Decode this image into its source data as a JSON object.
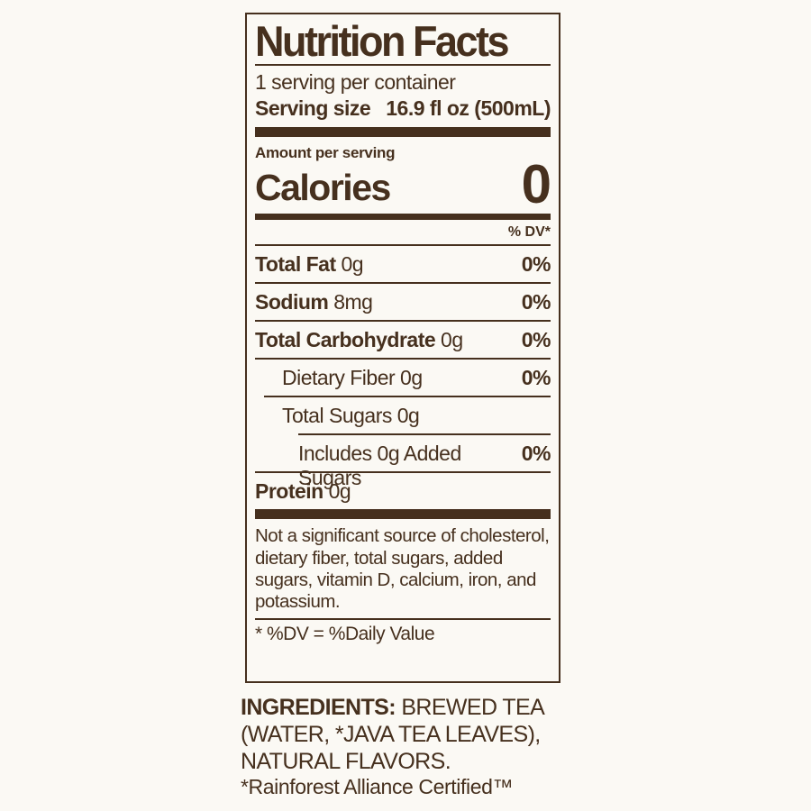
{
  "colors": {
    "label_brown": "#46301e",
    "background": "#fbf9f4"
  },
  "nutrition_label": {
    "title": "Nutrition Facts",
    "servings_per_container": "1 serving per container",
    "serving_size": {
      "label": "Serving size",
      "value": "16.9 fl oz (500mL)"
    },
    "amount_per_serving": "Amount per serving",
    "calories": {
      "label": "Calories",
      "value": "0"
    },
    "dv_header": "% DV*",
    "rows": [
      {
        "name": "Total Fat",
        "amount": "0g",
        "dv": "0%",
        "bold": true,
        "indent": 0,
        "sep": 0
      },
      {
        "name": "Sodium",
        "amount": "8mg",
        "dv": "0%",
        "bold": true,
        "indent": 0,
        "sep": 0
      },
      {
        "name": "Total Carbohydrate",
        "amount": "0g",
        "dv": "0%",
        "bold": true,
        "indent": 0,
        "sep": 0
      },
      {
        "name": "Dietary Fiber",
        "amount": "0g",
        "dv": "0%",
        "bold": false,
        "indent": 1,
        "sep": 0
      },
      {
        "name": "Total Sugars",
        "amount": "0g",
        "dv": "",
        "bold": false,
        "indent": 1,
        "sep": 1
      },
      {
        "name": "Includes 0g Added Sugars",
        "amount": "",
        "dv": "0%",
        "bold": false,
        "indent": 2,
        "sep": 2
      },
      {
        "name": "Protein",
        "amount": "0g",
        "dv": "",
        "bold": true,
        "indent": 0,
        "sep": 0
      }
    ],
    "footnote": "Not a significant source of cholesterol, dietary fiber, total sugars, added sugars, vitamin D, calcium, iron, and potassium.",
    "dv_definition": "* %DV = %Daily Value"
  },
  "ingredients": {
    "label": "INGREDIENTS:",
    "line1_rest": " BREWED TEA",
    "line2": "(WATER, *JAVA TEA LEAVES),",
    "line3": "NATURAL FLAVORS.",
    "certification": "*Rainforest Alliance Certified™"
  }
}
